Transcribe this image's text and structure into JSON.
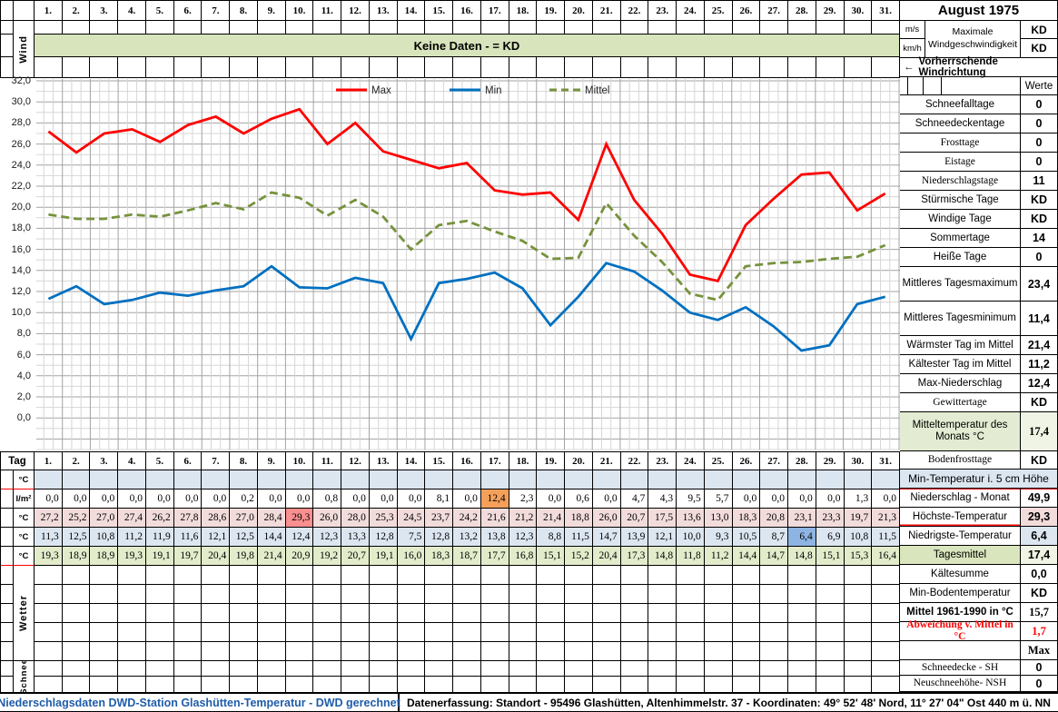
{
  "title": "August 1975",
  "wind": {
    "row_label": "Wind",
    "banner": "Keine Daten -  = KD",
    "speed_units": [
      "m/s",
      "km/h"
    ],
    "speed_label_lines": [
      "Maximale",
      "Windgeschwindigkeit"
    ],
    "speed_values": [
      "KD",
      "KD"
    ],
    "direction_arrow": "←",
    "direction_label": "Vorherrschende Windrichtung"
  },
  "days": [
    "1.",
    "2.",
    "3.",
    "4.",
    "5.",
    "6.",
    "7.",
    "8.",
    "9.",
    "10.",
    "11.",
    "12.",
    "13.",
    "14.",
    "15.",
    "16.",
    "17.",
    "18.",
    "19.",
    "20.",
    "21.",
    "22.",
    "23.",
    "24.",
    "25.",
    "26.",
    "27.",
    "28.",
    "29.",
    "30.",
    "31."
  ],
  "chart_data": {
    "type": "line",
    "title": "",
    "xlabel": "Tag",
    "ylabel": "°C",
    "ylim": [
      0,
      32
    ],
    "ytick_step": 2,
    "grid": true,
    "legend_position": "top-center",
    "x": [
      1,
      2,
      3,
      4,
      5,
      6,
      7,
      8,
      9,
      10,
      11,
      12,
      13,
      14,
      15,
      16,
      17,
      18,
      19,
      20,
      21,
      22,
      23,
      24,
      25,
      26,
      27,
      28,
      29,
      30,
      31
    ],
    "series": [
      {
        "name": "Max",
        "color": "#FF0000",
        "dash": false,
        "values": [
          27.2,
          25.2,
          27.0,
          27.4,
          26.2,
          27.8,
          28.6,
          27.0,
          28.4,
          29.3,
          26.0,
          28.0,
          25.3,
          24.5,
          23.7,
          24.2,
          21.6,
          21.2,
          21.4,
          18.8,
          26.0,
          20.7,
          17.5,
          13.6,
          13.0,
          18.3,
          20.8,
          23.1,
          23.3,
          19.7,
          21.3
        ]
      },
      {
        "name": "Min",
        "color": "#0070C0",
        "dash": false,
        "values": [
          11.3,
          12.5,
          10.8,
          11.2,
          11.9,
          11.6,
          12.1,
          12.5,
          14.4,
          12.4,
          12.3,
          13.3,
          12.8,
          7.5,
          12.8,
          13.2,
          13.8,
          12.3,
          8.8,
          11.5,
          14.7,
          13.9,
          12.1,
          10.0,
          9.3,
          10.5,
          8.7,
          6.4,
          6.9,
          10.8,
          11.5
        ]
      },
      {
        "name": "Mittel",
        "color": "#76923C",
        "dash": true,
        "values": [
          19.3,
          18.9,
          18.9,
          19.3,
          19.1,
          19.7,
          20.4,
          19.8,
          21.4,
          20.9,
          19.2,
          20.7,
          19.1,
          16.0,
          18.3,
          18.7,
          17.7,
          16.8,
          15.1,
          15.2,
          20.4,
          17.3,
          14.8,
          11.8,
          11.2,
          14.4,
          14.7,
          14.8,
          15.1,
          15.3,
          16.4
        ]
      }
    ]
  },
  "table": {
    "tag_label": "Tag",
    "group_labels": {
      "wetter": "Wetter",
      "schnee": "Schnee"
    },
    "rows": [
      {
        "name": "min-temp-5cm",
        "unit": "°C",
        "bg": "#DCE6F1",
        "values": [
          "",
          "",
          "",
          "",
          "",
          "",
          "",
          "",
          "",
          "",
          "",
          "",
          "",
          "",
          "",
          "",
          "",
          "",
          "",
          "",
          "",
          "",
          "",
          "",
          "",
          "",
          "",
          "",
          "",
          "",
          ""
        ]
      },
      {
        "name": "niederschlag",
        "unit": "l/m²",
        "bg": "#FFFFFF",
        "highlights": {
          "17": "#F5A05A"
        },
        "values": [
          "0,0",
          "0,0",
          "0,0",
          "0,0",
          "0,0",
          "0,0",
          "0,0",
          "0,2",
          "0,0",
          "0,0",
          "0,8",
          "0,0",
          "0,0",
          "0,0",
          "8,1",
          "0,0",
          "12,4",
          "2,3",
          "0,0",
          "0,6",
          "0,0",
          "4,7",
          "4,3",
          "9,5",
          "5,7",
          "0,0",
          "0,0",
          "0,0",
          "0,0",
          "1,3",
          "0,0"
        ]
      },
      {
        "name": "max-temperatur",
        "unit": "°C",
        "bg": "#F2DCDB",
        "highlights": {
          "10": "#FA8F8F"
        },
        "values": [
          "27,2",
          "25,2",
          "27,0",
          "27,4",
          "26,2",
          "27,8",
          "28,6",
          "27,0",
          "28,4",
          "29,3",
          "26,0",
          "28,0",
          "25,3",
          "24,5",
          "23,7",
          "24,2",
          "21,6",
          "21,2",
          "21,4",
          "18,8",
          "26,0",
          "20,7",
          "17,5",
          "13,6",
          "13,0",
          "18,3",
          "20,8",
          "23,1",
          "23,3",
          "19,7",
          "21,3"
        ]
      },
      {
        "name": "min-temperatur",
        "unit": "°C",
        "bg": "#DCE6F1",
        "highlights": {
          "28": "#8EB4E3"
        },
        "values": [
          "11,3",
          "12,5",
          "10,8",
          "11,2",
          "11,9",
          "11,6",
          "12,1",
          "12,5",
          "14,4",
          "12,4",
          "12,3",
          "13,3",
          "12,8",
          "7,5",
          "12,8",
          "13,2",
          "13,8",
          "12,3",
          "8,8",
          "11,5",
          "14,7",
          "13,9",
          "12,1",
          "10,0",
          "9,3",
          "10,5",
          "8,7",
          "6,4",
          "6,9",
          "10,8",
          "11,5"
        ]
      },
      {
        "name": "tagesmittel",
        "unit": "°C",
        "bg": "#E2ECCB",
        "values": [
          "19,3",
          "18,9",
          "18,9",
          "19,3",
          "19,1",
          "19,7",
          "20,4",
          "19,8",
          "21,4",
          "20,9",
          "19,2",
          "20,7",
          "19,1",
          "16,0",
          "18,3",
          "18,7",
          "17,7",
          "16,8",
          "15,1",
          "15,2",
          "20,4",
          "17,3",
          "14,8",
          "11,8",
          "11,2",
          "14,4",
          "14,7",
          "14,8",
          "15,1",
          "15,3",
          "16,4"
        ]
      }
    ]
  },
  "sidebar": {
    "werte_header": "Werte",
    "stats1": [
      {
        "label": "Schneefalltage",
        "value": "0"
      },
      {
        "label": "Schneedeckentage",
        "value": "0"
      },
      {
        "label": "Frosttage",
        "value": "0",
        "serif": true
      },
      {
        "label": "Eistage",
        "value": "0",
        "serif": true
      },
      {
        "label": "Niederschlagstage",
        "value": "11",
        "serif": true
      },
      {
        "label": "Stürmische Tage",
        "value": "KD"
      },
      {
        "label": "Windige Tage",
        "value": "KD"
      },
      {
        "label": "Sommertage",
        "value": "14"
      },
      {
        "label": "Heiße Tage",
        "value": "0"
      },
      {
        "label": "Mittleres Tagesmaximum",
        "value": "23,4"
      },
      {
        "label": "Mittleres Tagesminimum",
        "value": "11,4"
      },
      {
        "label": "Wärmster Tag im Mittel",
        "value": "21,4"
      },
      {
        "label": "Kältester Tag im Mittel",
        "value": "11,2"
      },
      {
        "label": "Max-Niederschlag",
        "value": "12,4"
      },
      {
        "label": "Gewittertage",
        "value": "KD",
        "serif": true
      },
      {
        "label": "Mitteltemperatur des Monats °C",
        "value": "17,4",
        "label_bg": "#E3ECD2",
        "value_bg": "#EFF4E4",
        "serif_value": true
      }
    ],
    "stats2": [
      {
        "label": "Bodenfrosttage",
        "value": "KD",
        "serif": true
      },
      {
        "label": "Min-Temperatur i. 5 cm Höhe",
        "span": true,
        "bg": "#DCE6F1"
      },
      {
        "label": "Niederschlag - Monat",
        "value": "49,9",
        "red_top": true
      },
      {
        "label": "Höchste-Temperatur",
        "value": "29,3",
        "value_bg": "#F2DCDB",
        "red_bottom": true
      },
      {
        "label": "Niedrigste-Temperatur",
        "value": "6,4",
        "value_bg": "#DCE6F1"
      },
      {
        "label": "Tagesmittel",
        "value": "17,4",
        "label_bg": "#D9E5BD",
        "value_bg": "#EFF4E4",
        "red_bottom": true
      },
      {
        "label": "Kältesumme",
        "value": "0,0"
      },
      {
        "label": "Min-Bodentemperatur",
        "value": "KD"
      },
      {
        "label": "Mittel 1961-1990 in °C",
        "value": "15,7",
        "bold_label": true,
        "serif_value": true
      },
      {
        "label": "Abweichung v. Mittel in °C",
        "value": "1,7",
        "color": "#FF0000",
        "bold_label": true,
        "serif": true,
        "serif_value": true
      },
      {
        "label": "",
        "value": "Max",
        "serif_value": true
      },
      {
        "label": "Schneedecke -   SH",
        "value": "0",
        "serif": true
      },
      {
        "label": "Neuschneehöhe- NSH",
        "value": "0",
        "serif": true
      }
    ]
  },
  "footer": {
    "left": "Niederschlagsdaten DWD-Station Glashütten-Temperatur -  DWD gerechnet",
    "right": "Datenerfassung:  Standort -  95496  Glashütten, Altenhimmelstr. 37 - Koordinaten:  49° 52' 48' Nord,   11° 27' 04\" Ost  440 m ü. NN"
  }
}
